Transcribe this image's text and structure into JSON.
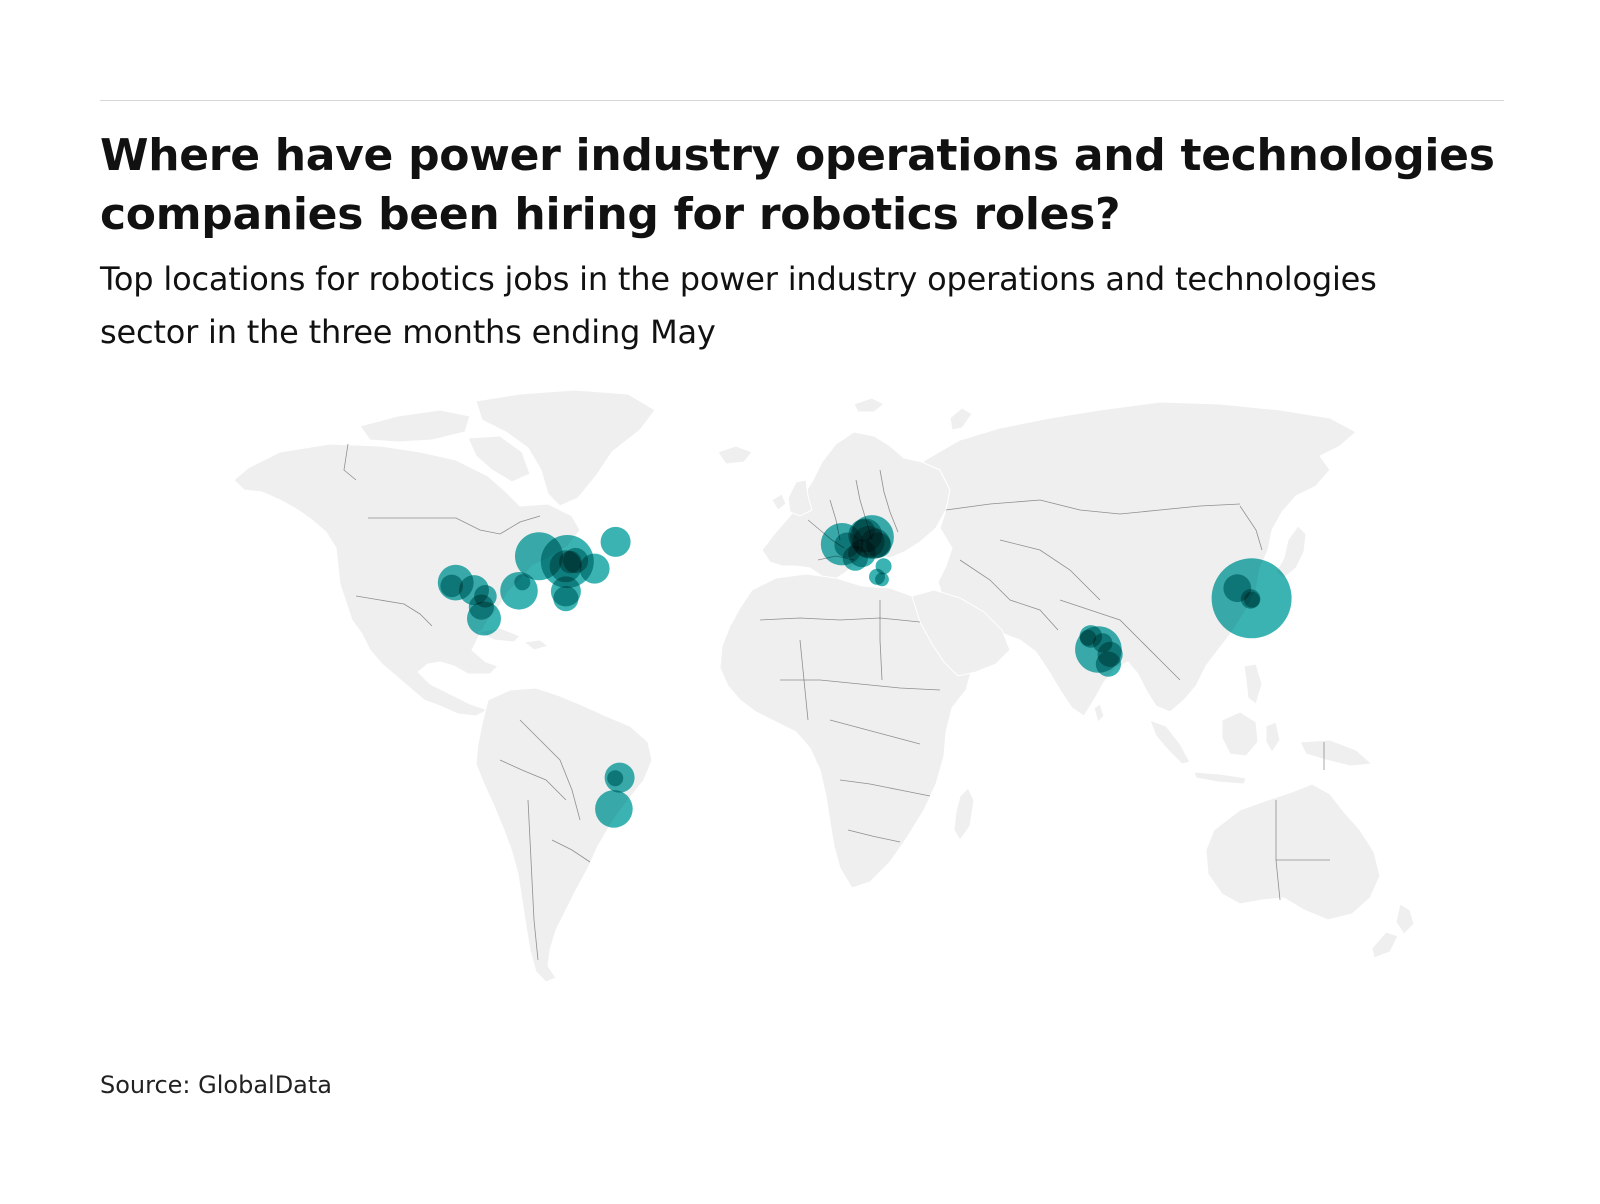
{
  "header": {
    "title": "Where have power industry operations and technologies companies been hiring for robotics roles?",
    "subtitle": "Top locations for robotics jobs in the power industry operations and technologies sector in the three months ending May"
  },
  "footer": {
    "source": "Source: GlobalData"
  },
  "colors": {
    "land": "#efefef",
    "border": "#666666",
    "bubble": "#1aa6a6",
    "bubble_overlap": "#0e4f50",
    "rule": "#d6d6d6"
  },
  "chart_data": {
    "type": "bubble-map",
    "title": "Where have power industry operations and technologies companies been hiring for robotics roles?",
    "subtitle": "Top locations for robotics jobs in the power industry operations and technologies sector in the three months ending May",
    "legend": "none",
    "points": [
      {
        "lat": 31.2,
        "lon": 121.5,
        "size": 100
      },
      {
        "lat": 31.0,
        "lon": 121.2,
        "size": 6
      },
      {
        "lat": 30.8,
        "lon": 121.6,
        "size": 4
      },
      {
        "lat": 34.3,
        "lon": 117.2,
        "size": 12
      },
      {
        "lat": 44.1,
        "lon": -92.5,
        "size": 36
      },
      {
        "lat": 42.5,
        "lon": -84.0,
        "size": 44
      },
      {
        "lat": 42.8,
        "lon": -81.5,
        "size": 10
      },
      {
        "lat": 42.3,
        "lon": -83.1,
        "size": 8
      },
      {
        "lat": 41.0,
        "lon": -84.5,
        "size": 16
      },
      {
        "lat": 40.3,
        "lon": -75.8,
        "size": 14
      },
      {
        "lat": 48.5,
        "lon": -69.5,
        "size": 14
      },
      {
        "lat": 36.0,
        "lon": -117.5,
        "size": 20
      },
      {
        "lat": 35.0,
        "lon": -118.7,
        "size": 8
      },
      {
        "lat": 33.7,
        "lon": -112.0,
        "size": 14
      },
      {
        "lat": 31.8,
        "lon": -108.6,
        "size": 8
      },
      {
        "lat": 33.5,
        "lon": -98.5,
        "size": 22
      },
      {
        "lat": 36.1,
        "lon": -97.5,
        "size": 4
      },
      {
        "lat": 33.3,
        "lon": -84.4,
        "size": 14
      },
      {
        "lat": 31.1,
        "lon": -84.4,
        "size": 10
      },
      {
        "lat": 28.5,
        "lon": -109.8,
        "size": 10
      },
      {
        "lat": 25.0,
        "lon": -109.0,
        "size": 18
      },
      {
        "lat": 47.8,
        "lon": -1.5,
        "size": 28
      },
      {
        "lat": 47.5,
        "lon": 0.0,
        "size": 10
      },
      {
        "lat": 50.5,
        "lon": 5.5,
        "size": 18
      },
      {
        "lat": 50.0,
        "lon": 7.5,
        "size": 30
      },
      {
        "lat": 48.5,
        "lon": 6.5,
        "size": 16
      },
      {
        "lat": 48.0,
        "lon": 8.5,
        "size": 14
      },
      {
        "lat": 47.5,
        "lon": 9.5,
        "size": 10
      },
      {
        "lat": 52.0,
        "lon": 5.0,
        "size": 8
      },
      {
        "lat": 45.0,
        "lon": 4.5,
        "size": 12
      },
      {
        "lat": 43.5,
        "lon": 2.5,
        "size": 10
      },
      {
        "lat": 41.0,
        "lon": 11.0,
        "size": 4
      },
      {
        "lat": 37.8,
        "lon": 9.0,
        "size": 4
      },
      {
        "lat": 37.0,
        "lon": 10.5,
        "size": 3
      },
      {
        "lat": 19.5,
        "lon": 73.2,
        "size": 8
      },
      {
        "lat": 19.1,
        "lon": 72.4,
        "size": 4
      },
      {
        "lat": 15.5,
        "lon": 75.5,
        "size": 34
      },
      {
        "lat": 17.5,
        "lon": 76.8,
        "size": 6
      },
      {
        "lat": 14.0,
        "lon": 79.0,
        "size": 10
      },
      {
        "lat": 11.0,
        "lon": 78.5,
        "size": 10
      },
      {
        "lat": -23.8,
        "lon": -68.3,
        "size": 14
      },
      {
        "lat": -24.0,
        "lon": -69.6,
        "size": 4
      },
      {
        "lat": -33.4,
        "lon": -70.0,
        "size": 22
      }
    ]
  }
}
